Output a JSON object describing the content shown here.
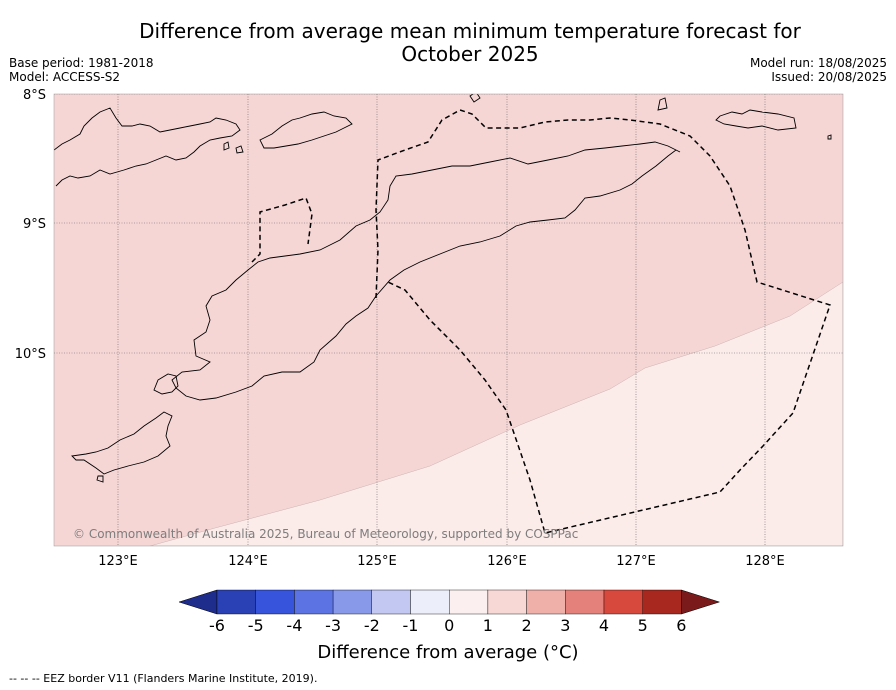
{
  "title": "Difference from average mean minimum temperature forecast for October 2025",
  "base_period": "Base period: 1981-2018",
  "model": "Model: ACCESS-S2",
  "model_run": "Model run: 18/08/2025",
  "issued": "Issued: 20/08/2025",
  "map": {
    "lat_labels": [
      "8°S",
      "9°S",
      "10°S"
    ],
    "lon_labels": [
      "123°E",
      "124°E",
      "125°E",
      "126°E",
      "127°E",
      "128°E"
    ],
    "copyright": "© Commonwealth of Australia 2025, Bureau of Meteorology, supported by COSPPac",
    "zones": [
      {
        "category": "1 to 2",
        "color": "#f5d6d5"
      },
      {
        "category": "0 to 1",
        "color": "#fbebe9"
      }
    ],
    "land_outline_color": "#000000",
    "eez_line_style": "dashed"
  },
  "colorbar": {
    "title": "Difference from average (°C)",
    "ticks": [
      "-6",
      "-5",
      "-4",
      "-3",
      "-2",
      "-1",
      "0",
      "1",
      "2",
      "3",
      "4",
      "5",
      "6"
    ],
    "colors": [
      "#1e2c8c",
      "#2a40b5",
      "#3654dc",
      "#5b73e3",
      "#8799e8",
      "#c2c8f2",
      "#eceefa",
      "#fbf0ef",
      "#f7d8d5",
      "#efb0aa",
      "#e4817a",
      "#d7493c",
      "#a8281f",
      "#7a1a1a"
    ]
  },
  "footer": "-- -- -- EEZ border V11 (Flanders Marine Institute, 2019)."
}
